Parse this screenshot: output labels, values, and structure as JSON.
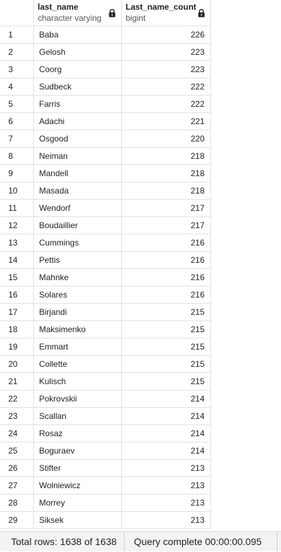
{
  "columns": [
    {
      "name": "last_name",
      "type": "character varying"
    },
    {
      "name": "Last_name_count",
      "type": "bigint"
    }
  ],
  "rows": [
    {
      "n": "1",
      "last_name": "Baba",
      "count": "226"
    },
    {
      "n": "2",
      "last_name": "Gelosh",
      "count": "223"
    },
    {
      "n": "3",
      "last_name": "Coorg",
      "count": "223"
    },
    {
      "n": "4",
      "last_name": "Sudbeck",
      "count": "222"
    },
    {
      "n": "5",
      "last_name": "Farris",
      "count": "222"
    },
    {
      "n": "6",
      "last_name": "Adachi",
      "count": "221"
    },
    {
      "n": "7",
      "last_name": "Osgood",
      "count": "220"
    },
    {
      "n": "8",
      "last_name": "Neiman",
      "count": "218"
    },
    {
      "n": "9",
      "last_name": "Mandell",
      "count": "218"
    },
    {
      "n": "10",
      "last_name": "Masada",
      "count": "218"
    },
    {
      "n": "11",
      "last_name": "Wendorf",
      "count": "217"
    },
    {
      "n": "12",
      "last_name": "Boudaillier",
      "count": "217"
    },
    {
      "n": "13",
      "last_name": "Cummings",
      "count": "216"
    },
    {
      "n": "14",
      "last_name": "Pettis",
      "count": "216"
    },
    {
      "n": "15",
      "last_name": "Mahnke",
      "count": "216"
    },
    {
      "n": "16",
      "last_name": "Solares",
      "count": "216"
    },
    {
      "n": "17",
      "last_name": "Birjandi",
      "count": "215"
    },
    {
      "n": "18",
      "last_name": "Maksimenko",
      "count": "215"
    },
    {
      "n": "19",
      "last_name": "Emmart",
      "count": "215"
    },
    {
      "n": "20",
      "last_name": "Collette",
      "count": "215"
    },
    {
      "n": "21",
      "last_name": "Kulisch",
      "count": "215"
    },
    {
      "n": "22",
      "last_name": "Pokrovskii",
      "count": "214"
    },
    {
      "n": "23",
      "last_name": "Scallan",
      "count": "214"
    },
    {
      "n": "24",
      "last_name": "Rosaz",
      "count": "214"
    },
    {
      "n": "25",
      "last_name": "Boguraev",
      "count": "214"
    },
    {
      "n": "26",
      "last_name": "Stifter",
      "count": "213"
    },
    {
      "n": "27",
      "last_name": "Wolniewicz",
      "count": "213"
    },
    {
      "n": "28",
      "last_name": "Morrey",
      "count": "213"
    },
    {
      "n": "29",
      "last_name": "Siksek",
      "count": "213"
    }
  ],
  "status": {
    "total_rows": "Total rows: 1638 of 1638",
    "query": "Query complete 00:00:00.095"
  },
  "icons": {
    "column_lock": "lock-icon"
  }
}
